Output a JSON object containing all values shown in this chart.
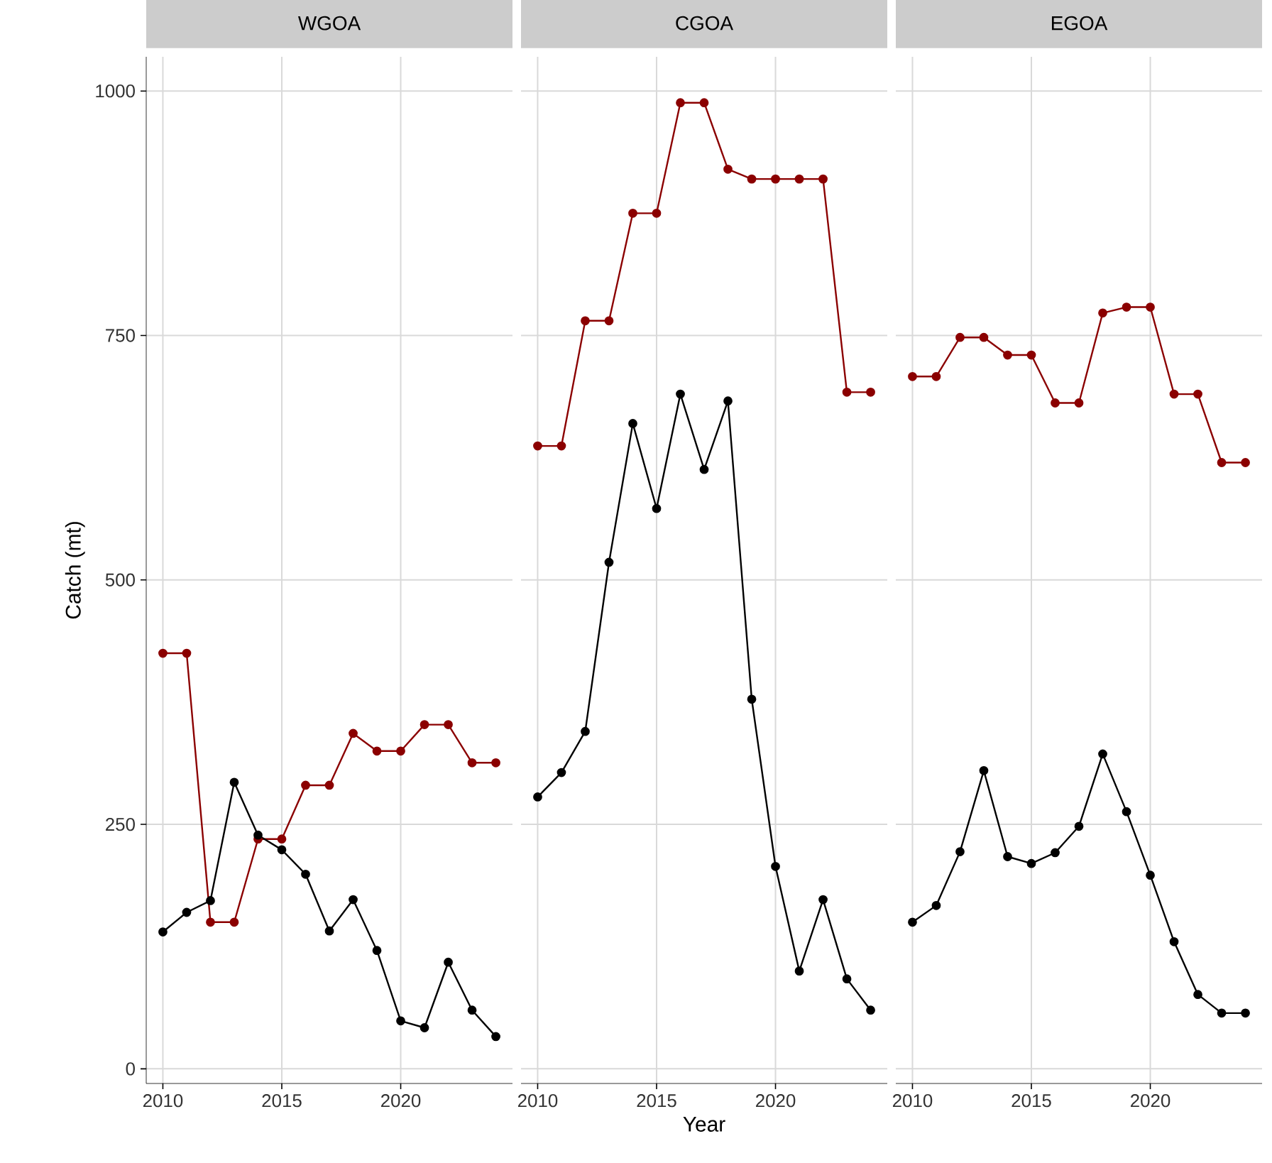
{
  "chart_data": [
    {
      "type": "line",
      "title": "WGOA",
      "ylabel": "Catch (mt)",
      "x": [
        2010,
        2011,
        2012,
        2013,
        2014,
        2015,
        2016,
        2017,
        2018,
        2019,
        2020,
        2021,
        2022,
        2023,
        2024
      ],
      "xlim": [
        2009.3,
        2024.7
      ],
      "ylim": [
        -15,
        1035
      ],
      "xticks": [
        2010,
        2015,
        2020
      ],
      "yticks": [
        0,
        250,
        500,
        750,
        1000
      ],
      "grid": true,
      "marker": "circle",
      "line_style": "solid",
      "series": [
        {
          "color": "#8b0000",
          "values": [
            425,
            425,
            150,
            150,
            235,
            235,
            290,
            290,
            343,
            325,
            325,
            352,
            352,
            313,
            313
          ]
        },
        {
          "color": "#000000",
          "values": [
            140,
            160,
            172,
            293,
            239,
            224,
            199,
            141,
            173,
            121,
            49,
            42,
            109,
            60,
            33
          ]
        }
      ]
    },
    {
      "type": "line",
      "title": "CGOA",
      "xlabel": "Year",
      "x": [
        2010,
        2011,
        2012,
        2013,
        2014,
        2015,
        2016,
        2017,
        2018,
        2019,
        2020,
        2021,
        2022,
        2023,
        2024
      ],
      "xlim": [
        2009.3,
        2024.7
      ],
      "ylim": [
        -15,
        1035
      ],
      "xticks": [
        2010,
        2015,
        2020
      ],
      "yticks": [
        0,
        250,
        500,
        750,
        1000
      ],
      "grid": true,
      "marker": "circle",
      "line_style": "solid",
      "tick_labels": "x",
      "series": [
        {
          "color": "#8b0000",
          "values": [
            637,
            637,
            765,
            765,
            875,
            875,
            988,
            988,
            920,
            910,
            910,
            910,
            910,
            692,
            692
          ]
        },
        {
          "color": "#000000",
          "values": [
            278,
            303,
            345,
            518,
            660,
            573,
            690,
            613,
            683,
            378,
            207,
            100,
            173,
            92,
            60
          ]
        }
      ]
    },
    {
      "type": "line",
      "title": "EGOA",
      "x": [
        2010,
        2011,
        2012,
        2013,
        2014,
        2015,
        2016,
        2017,
        2018,
        2019,
        2020,
        2021,
        2022,
        2023,
        2024
      ],
      "xlim": [
        2009.3,
        2024.7
      ],
      "ylim": [
        -15,
        1035
      ],
      "xticks": [
        2010,
        2015,
        2020
      ],
      "yticks": [
        0,
        250,
        500,
        750,
        1000
      ],
      "grid": true,
      "marker": "circle",
      "line_style": "solid",
      "tick_labels": "x",
      "series": [
        {
          "color": "#8b0000",
          "values": [
            708,
            708,
            748,
            748,
            730,
            730,
            681,
            681,
            773,
            779,
            779,
            690,
            690,
            620,
            620
          ]
        },
        {
          "color": "#000000",
          "values": [
            150,
            167,
            222,
            305,
            217,
            210,
            221,
            248,
            322,
            263,
            198,
            130,
            76,
            57,
            57
          ]
        }
      ]
    }
  ]
}
